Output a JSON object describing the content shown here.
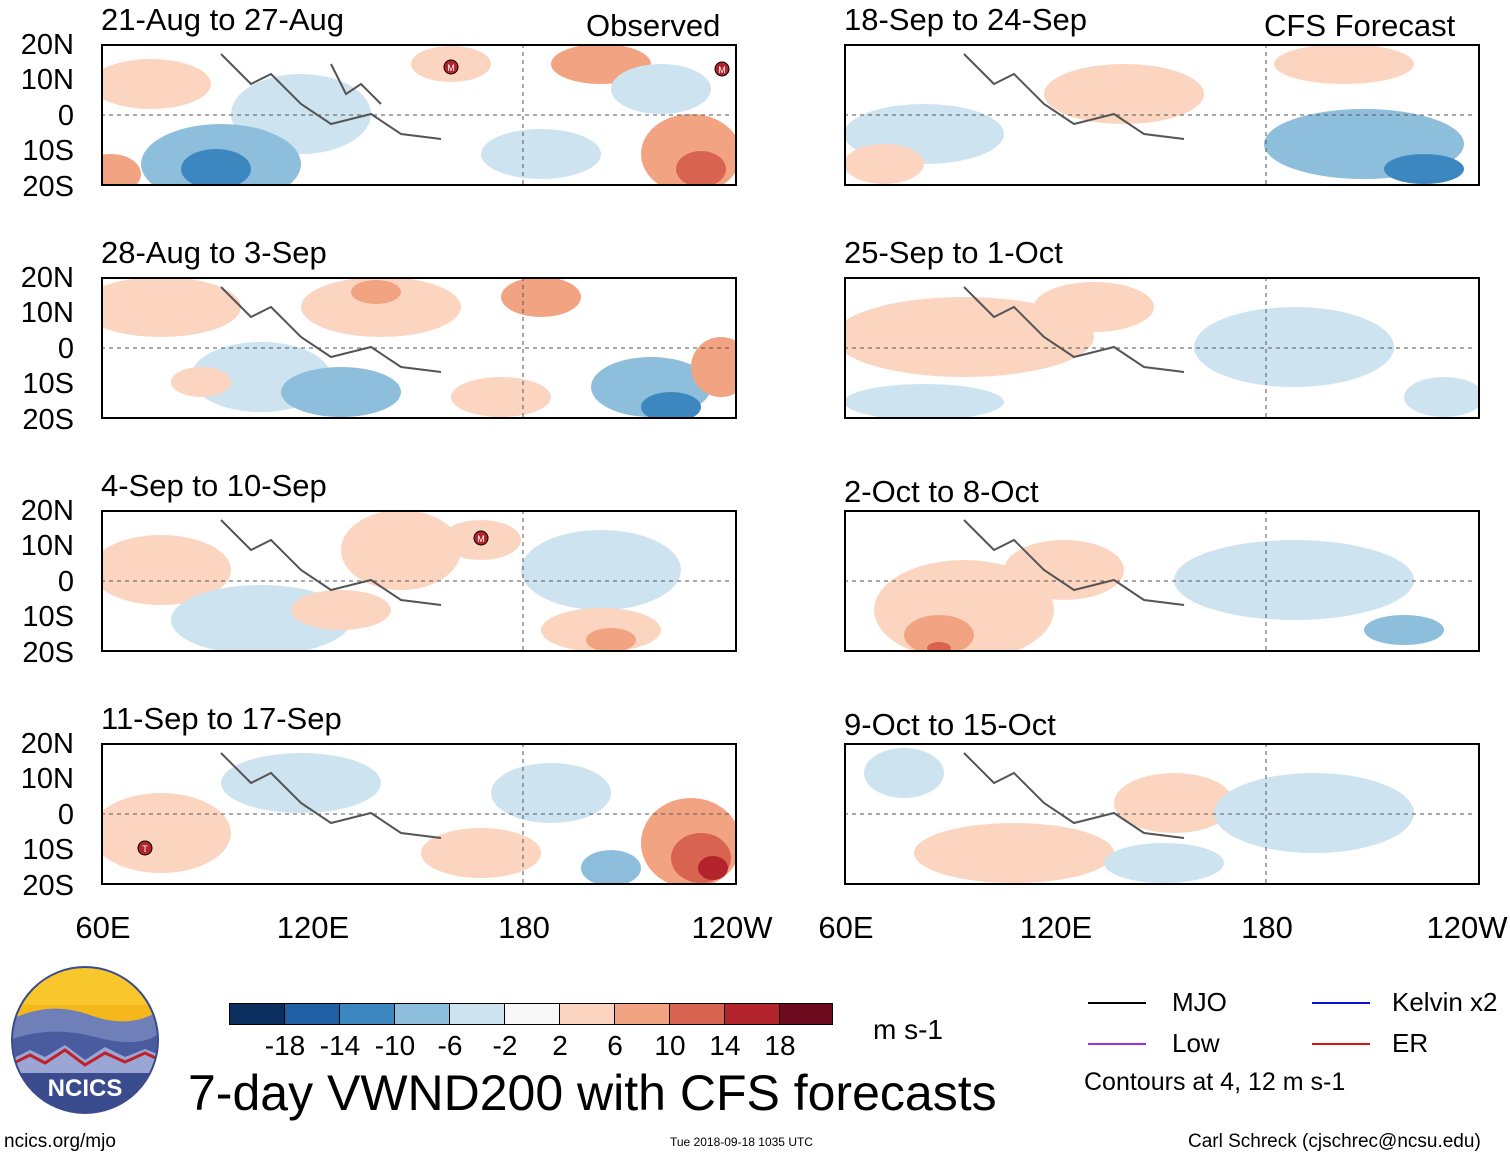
{
  "columns": {
    "left_label": "Observed",
    "right_label": "CFS Forecast"
  },
  "panels_left": [
    {
      "title": "21-Aug to 27-Aug"
    },
    {
      "title": "28-Aug to 3-Sep"
    },
    {
      "title": "4-Sep to 10-Sep"
    },
    {
      "title": "11-Sep to 17-Sep"
    }
  ],
  "panels_right": [
    {
      "title": "18-Sep to 24-Sep"
    },
    {
      "title": "25-Sep to 1-Oct"
    },
    {
      "title": "2-Oct to 8-Oct"
    },
    {
      "title": "9-Oct to 15-Oct"
    }
  ],
  "y_axis": [
    "20N",
    "10N",
    "0",
    "10S",
    "20S"
  ],
  "x_axis": [
    "60E",
    "120E",
    "180",
    "120W"
  ],
  "colorbar": {
    "ticks": [
      "-18",
      "-14",
      "-10",
      "-6",
      "-2",
      "2",
      "6",
      "10",
      "14",
      "18"
    ],
    "colors": [
      "#0b2f5e",
      "#1f5fa6",
      "#3d87c0",
      "#8dbedc",
      "#cde3f0",
      "#f8f8f8",
      "#fbd5c0",
      "#f2a482",
      "#d86350",
      "#b3242d",
      "#6e0a1e"
    ],
    "units": "m s-1"
  },
  "legend": {
    "items": [
      {
        "label": "MJO",
        "color": "#000000"
      },
      {
        "label": "Kelvin x2",
        "color": "#1010d0"
      },
      {
        "label": "Low",
        "color": "#9b30e0"
      },
      {
        "label": "ER",
        "color": "#e01010"
      }
    ],
    "note": "Contours at 4, 12 m s-1"
  },
  "title": "7-day VWND200 with CFS forecasts",
  "logo_text": "NCICS",
  "footer": {
    "url": "ncics.org/mjo",
    "timestamp": "Tue 2018-09-18 1035 UTC",
    "credit": "Carl Schreck (cjschrec@ncsu.edu)"
  },
  "storm_markers": [
    {
      "symbol": "M"
    },
    {
      "symbol": "M"
    },
    {
      "symbol": "M"
    },
    {
      "symbol": "T"
    }
  ]
}
